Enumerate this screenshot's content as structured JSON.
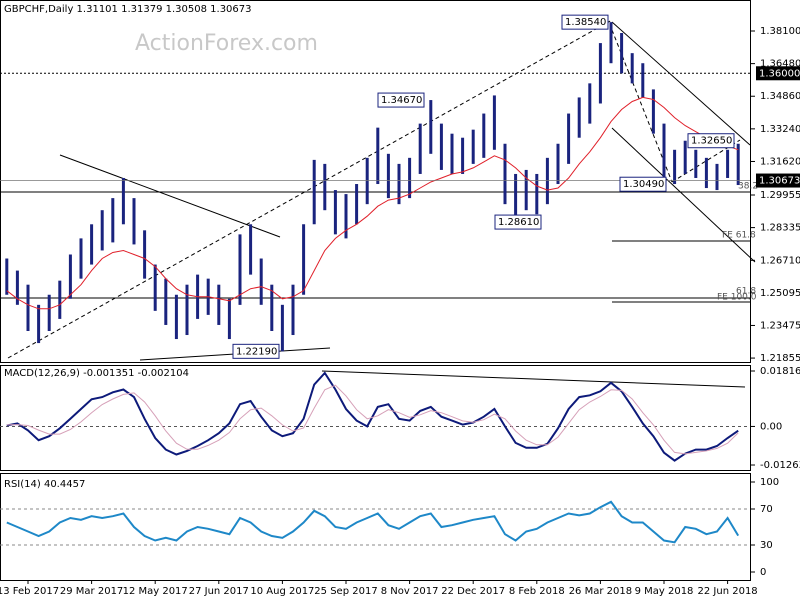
{
  "chart_data": [
    {
      "type": "ohlc",
      "title": "GBPCHF,Daily  1.31101 1.31379 1.30508 1.30673",
      "watermark": "ActionForex.com",
      "categories": [
        null,
        null,
        "13 Feb 2017",
        null,
        null,
        null,
        null,
        null,
        "29 Mar 2017",
        null,
        null,
        null,
        null,
        null,
        "12 May 2017",
        null,
        null,
        null,
        null,
        null,
        "27 Jun 2017",
        null,
        null,
        null,
        null,
        null,
        "10 Aug 2017",
        null,
        null,
        null,
        null,
        null,
        "25 Sep 2017",
        null,
        null,
        null,
        null,
        null,
        "8 Nov 2017",
        null,
        null,
        null,
        null,
        null,
        "22 Dec 2017",
        null,
        null,
        null,
        null,
        null,
        "8 Feb 2018",
        null,
        null,
        null,
        null,
        null,
        "26 Mar 2018",
        null,
        null,
        null,
        null,
        null,
        "9 May 2018",
        null,
        null,
        null,
        null,
        null,
        "22 Jun 2018",
        null
      ],
      "high": [
        1.268,
        1.262,
        1.255,
        1.245,
        1.25,
        1.257,
        1.27,
        1.278,
        1.285,
        1.292,
        1.298,
        1.308,
        1.298,
        1.282,
        1.265,
        1.258,
        1.25,
        1.255,
        1.26,
        1.258,
        1.255,
        1.248,
        1.28,
        1.285,
        1.268,
        1.255,
        1.245,
        1.255,
        1.285,
        1.317,
        1.315,
        1.302,
        1.3,
        1.305,
        1.318,
        1.333,
        1.32,
        1.315,
        1.318,
        1.335,
        1.3467,
        1.335,
        1.33,
        1.328,
        1.332,
        1.34,
        1.349,
        1.325,
        1.31,
        1.312,
        1.31,
        1.318,
        1.325,
        1.34,
        1.348,
        1.355,
        1.375,
        1.3854,
        1.38,
        1.37,
        1.365,
        1.352,
        1.335,
        1.322,
        1.3265,
        1.322,
        1.318,
        1.315,
        1.322,
        1.325
      ],
      "low": [
        1.25,
        1.245,
        1.232,
        1.226,
        1.232,
        1.238,
        1.248,
        1.258,
        1.265,
        1.272,
        1.276,
        1.285,
        1.275,
        1.258,
        1.242,
        1.235,
        1.228,
        1.23,
        1.238,
        1.24,
        1.235,
        1.228,
        1.245,
        1.26,
        1.245,
        1.232,
        1.2219,
        1.23,
        1.25,
        1.285,
        1.292,
        1.28,
        1.278,
        1.285,
        1.295,
        1.305,
        1.298,
        1.295,
        1.298,
        1.31,
        1.32,
        1.312,
        1.31,
        1.31,
        1.315,
        1.318,
        1.322,
        1.295,
        1.2861,
        1.292,
        1.29,
        1.295,
        1.305,
        1.315,
        1.328,
        1.335,
        1.345,
        1.365,
        1.36,
        1.355,
        1.348,
        1.33,
        1.3049,
        1.305,
        1.31,
        1.308,
        1.303,
        1.302,
        1.308,
        1.3045
      ],
      "bar_color": "#1a237e",
      "ma": {
        "color": "#e0202a",
        "values": [
          1.252,
          1.248,
          1.245,
          1.243,
          1.243,
          1.245,
          1.25,
          1.255,
          1.262,
          1.268,
          1.271,
          1.272,
          1.27,
          1.268,
          1.264,
          1.258,
          1.253,
          1.25,
          1.249,
          1.249,
          1.248,
          1.247,
          1.25,
          1.253,
          1.254,
          1.252,
          1.248,
          1.249,
          1.252,
          1.262,
          1.272,
          1.278,
          1.282,
          1.285,
          1.289,
          1.294,
          1.297,
          1.298,
          1.3,
          1.303,
          1.306,
          1.308,
          1.31,
          1.311,
          1.313,
          1.316,
          1.319,
          1.317,
          1.313,
          1.308,
          1.304,
          1.302,
          1.303,
          1.308,
          1.315,
          1.321,
          1.328,
          1.336,
          1.342,
          1.346,
          1.348,
          1.347,
          1.343,
          1.338,
          1.334,
          1.331,
          1.328,
          1.326,
          1.324,
          1.322
        ]
      },
      "ylim": [
        1.2166,
        1.3964
      ],
      "yticks": [
        {
          "value": 1.381,
          "label": "1.38100"
        },
        {
          "value": 1.3648,
          "label": "1.36480"
        },
        {
          "value": 1.3486,
          "label": "1.34860"
        },
        {
          "value": 1.3324,
          "label": "1.33240"
        },
        {
          "value": 1.3162,
          "label": "1.31620"
        },
        {
          "value": 1.29955,
          "label": "1.29955"
        },
        {
          "value": 1.28335,
          "label": "1.28335"
        },
        {
          "value": 1.2671,
          "label": "1.26710"
        },
        {
          "value": 1.25095,
          "label": "1.25095"
        },
        {
          "value": 1.23475,
          "label": "1.23475"
        },
        {
          "value": 1.21855,
          "label": "1.21855"
        }
      ],
      "level": {
        "value": 1.36,
        "label": "1.36000"
      },
      "current_price": {
        "value": 1.30673,
        "label": "1.30673"
      },
      "annotations": [
        {
          "value": 1.3854,
          "label": "1.38540"
        },
        {
          "value": 1.3467,
          "label": "1.34670"
        },
        {
          "value": 1.3265,
          "label": "1.32650"
        },
        {
          "value": 1.3049,
          "label": "1.30490"
        },
        {
          "value": 1.2861,
          "label": "1.28610"
        },
        {
          "value": 1.2219,
          "label": "1.22190"
        }
      ],
      "fib_labels": [
        "38.2",
        "FE 61.8",
        "61.8",
        "FE 100.0"
      ]
    },
    {
      "type": "line",
      "title": "MACD(12,26,9) -0.001351 -0.002104",
      "series": [
        {
          "color": "#0d1a7a",
          "values": [
            0.0003,
            0.001,
            -0.0013,
            -0.0045,
            -0.0032,
            -0.0006,
            0.0025,
            0.0057,
            0.0089,
            0.0096,
            0.0112,
            0.0121,
            0.0096,
            0.0025,
            -0.0038,
            -0.0076,
            -0.0092,
            -0.008,
            -0.0064,
            -0.0045,
            -0.0022,
            0.001,
            0.0073,
            0.0083,
            0.0032,
            -0.0013,
            -0.0032,
            -0.0022,
            0.0025,
            0.0137,
            0.0175,
            0.0121,
            0.0057,
            0.0019,
            0,
            0.0064,
            0.0073,
            0.0025,
            0.0019,
            0.0051,
            0.0064,
            0.0032,
            0.0019,
            0.0006,
            0.0013,
            0.0032,
            0.0057,
            0,
            -0.0054,
            -0.007,
            -0.007,
            -0.0057,
            -0.0006,
            0.0057,
            0.0096,
            0.0102,
            0.0115,
            0.0143,
            0.0115,
            0.0064,
            0.001,
            -0.0032,
            -0.0086,
            -0.0112,
            -0.0089,
            -0.0076,
            -0.0076,
            -0.0064,
            -0.0038,
            -0.0014
          ]
        },
        {
          "color": "#d6a0b8",
          "values": [
            0.0005,
            0.0006,
            0.0003,
            -0.0012,
            -0.0025,
            -0.0025,
            -0.001,
            0.0015,
            0.0045,
            0.0072,
            0.009,
            0.0105,
            0.011,
            0.008,
            0.0035,
            -0.0015,
            -0.0055,
            -0.0075,
            -0.0075,
            -0.0062,
            -0.0045,
            -0.002,
            0.0025,
            0.0055,
            0.006,
            0.0035,
            0.0005,
            -0.0015,
            -0.0005,
            0.006,
            0.012,
            0.0135,
            0.01,
            0.0055,
            0.0025,
            0.0035,
            0.0055,
            0.0045,
            0.003,
            0.0038,
            0.0052,
            0.0045,
            0.0032,
            0.0018,
            0.0014,
            0.0022,
            0.004,
            0.0025,
            -0.0015,
            -0.0045,
            -0.006,
            -0.006,
            -0.0035,
            0.001,
            0.0055,
            0.008,
            0.0098,
            0.012,
            0.0118,
            0.009,
            0.0045,
            0.0005,
            -0.0045,
            -0.0085,
            -0.009,
            -0.0085,
            -0.008,
            -0.0072,
            -0.0055,
            -0.0021
          ]
        }
      ],
      "ylim": [
        -0.01427,
        0.02013
      ],
      "yticks": [
        0.018161,
        {
          "value": 0,
          "label": "0.00"
        },
        -0.012637
      ]
    },
    {
      "type": "line",
      "title": "RSI(14) 40.4457",
      "series": [
        {
          "color": "#1e88c8",
          "values": [
            55,
            50,
            45,
            40,
            45,
            55,
            60,
            58,
            62,
            60,
            62,
            65,
            50,
            40,
            35,
            38,
            35,
            45,
            50,
            48,
            45,
            42,
            60,
            55,
            45,
            40,
            38,
            45,
            55,
            68,
            62,
            50,
            48,
            55,
            60,
            65,
            52,
            48,
            55,
            62,
            65,
            50,
            52,
            55,
            58,
            60,
            62,
            42,
            35,
            45,
            48,
            55,
            60,
            65,
            63,
            65,
            72,
            78,
            62,
            55,
            55,
            45,
            35,
            33,
            50,
            48,
            42,
            45,
            60,
            40.4457
          ]
        }
      ],
      "ylim": [
        -8.9,
        110
      ],
      "yticks": [
        100,
        70,
        30,
        0
      ],
      "dashed_levels": [
        70,
        30
      ]
    }
  ]
}
